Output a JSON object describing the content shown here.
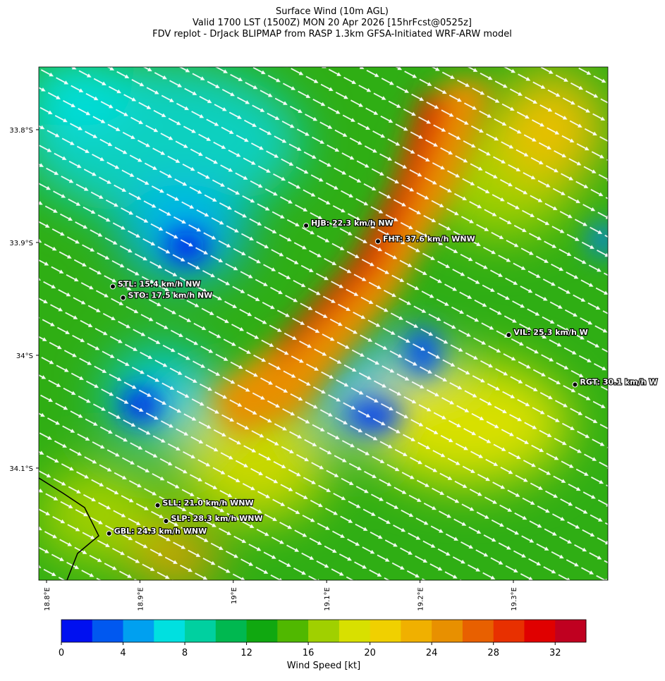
{
  "title": [
    "Surface Wind (10m AGL)",
    "Valid 1700 LST (1500Z) MON 20 Apr 2026 [15hrFcst@0525z]",
    "FDV replot - DrJack BLIPMAP from RASP 1.3km GFSA-Initiated WRF-ARW model"
  ],
  "map": {
    "xlim": [
      18.7917,
      19.4012
    ],
    "ylim": [
      -34.1994,
      -33.7444
    ],
    "xticks": [
      {
        "value": 18.8,
        "label": "18.8°E"
      },
      {
        "value": 18.9,
        "label": "18.9°E"
      },
      {
        "value": 19.0,
        "label": "19°E"
      },
      {
        "value": 19.1,
        "label": "19.1°E"
      },
      {
        "value": 19.2,
        "label": "19.2°E"
      },
      {
        "value": 19.3,
        "label": "19.3°E"
      }
    ],
    "yticks": [
      {
        "value": -33.8,
        "label": "33.8°S"
      },
      {
        "value": -33.9,
        "label": "33.9°S"
      },
      {
        "value": -34.0,
        "label": "34°S"
      },
      {
        "value": -34.1,
        "label": "34.1°S"
      }
    ]
  },
  "stations": [
    {
      "label": "HJB: 22.3 km/h NW",
      "lon": 19.078,
      "lat": -33.885
    },
    {
      "label": "FHT: 37.6 km/h WNW",
      "lon": 19.155,
      "lat": -33.899
    },
    {
      "label": "STL: 15.4 km/h NW",
      "lon": 18.871,
      "lat": -33.939
    },
    {
      "label": "STO: 17.5 km/h NW",
      "lon": 18.882,
      "lat": -33.949
    },
    {
      "label": "VIL: 25.3 km/h W",
      "lon": 19.295,
      "lat": -33.982
    },
    {
      "label": "RGT: 30.1 km/h W",
      "lon": 19.366,
      "lat": -34.026
    },
    {
      "label": "SLL: 21.0 km/h WNW",
      "lon": 18.919,
      "lat": -34.133
    },
    {
      "label": "SLP: 28.3 km/h WNW",
      "lon": 18.928,
      "lat": -34.147
    },
    {
      "label": "GBL: 24.3 km/h WNW",
      "lon": 18.867,
      "lat": -34.158
    }
  ],
  "colorbar": {
    "label": "Wind Speed [kt]",
    "lim": [
      0,
      34
    ],
    "levels": [
      0,
      2,
      4,
      6,
      8,
      10,
      12,
      14,
      16,
      18,
      20,
      22,
      24,
      26,
      28,
      30,
      32,
      34
    ],
    "colors": [
      "#0010f0",
      "#0058f0",
      "#00a0f0",
      "#00e0e0",
      "#00d0a0",
      "#00b850",
      "#10a810",
      "#50b800",
      "#a0d000",
      "#d8e000",
      "#f0d000",
      "#f0b000",
      "#e89000",
      "#e86000",
      "#e83000",
      "#e00000",
      "#c00020"
    ],
    "ticks": [
      0,
      4,
      8,
      12,
      16,
      20,
      24,
      28,
      32
    ]
  }
}
